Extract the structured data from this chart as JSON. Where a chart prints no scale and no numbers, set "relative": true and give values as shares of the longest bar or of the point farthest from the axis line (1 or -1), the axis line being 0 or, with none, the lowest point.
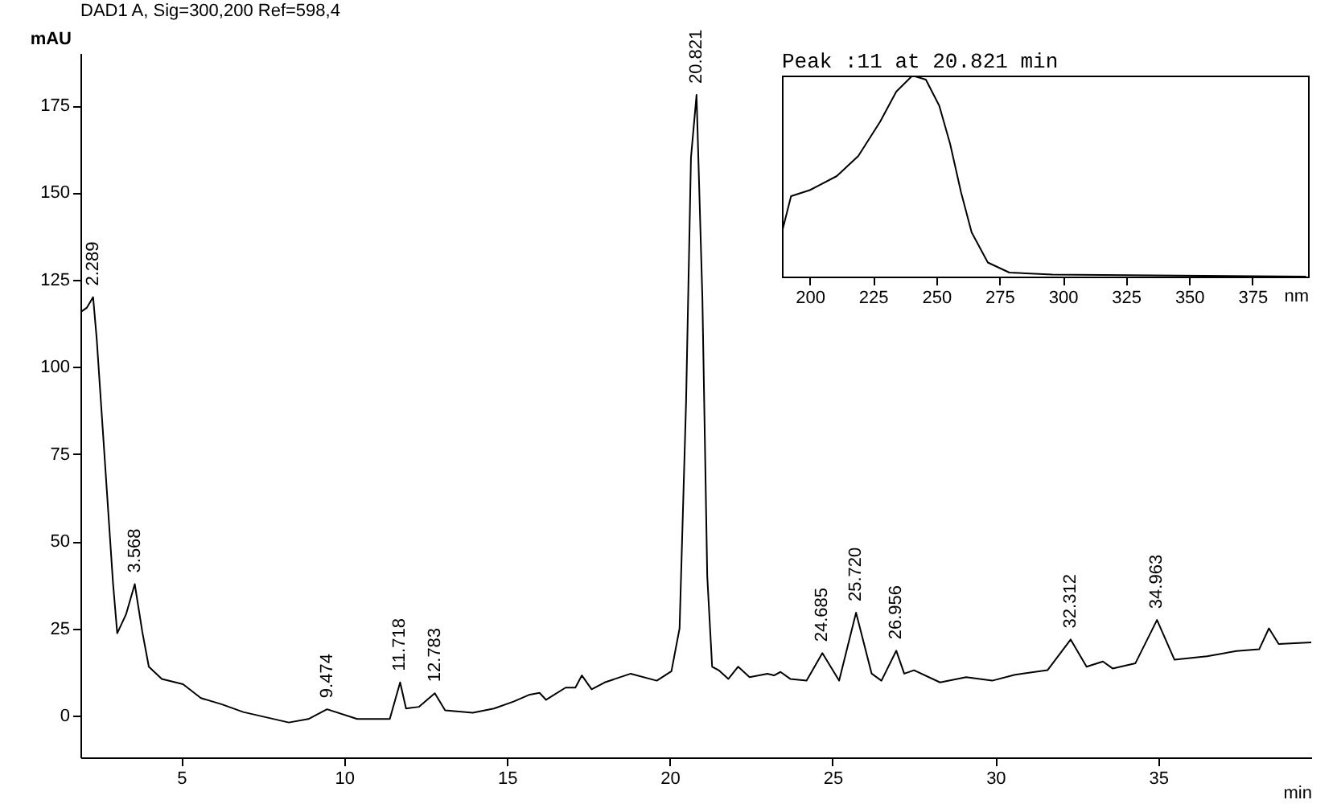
{
  "chart_data": [
    {
      "type": "line",
      "title": "DAD1 A, Sig=300,200 Ref=598,4",
      "xlabel": "min",
      "ylabel": "mAU",
      "xlim": [
        1.9,
        39.7
      ],
      "xticks": [
        5,
        10,
        15,
        20,
        25,
        30,
        35
      ],
      "ylim": [
        -12,
        190
      ],
      "yticks": [
        0,
        25,
        50,
        75,
        100,
        125,
        150,
        175
      ],
      "series": [
        {
          "color": "#000000",
          "x": [
            1.95,
            2.1,
            2.289,
            2.4,
            2.6,
            2.9,
            3.03,
            3.3,
            3.568,
            3.8,
            4.0,
            4.4,
            5.05,
            5.6,
            6.25,
            6.9,
            7.6,
            8.3,
            8.9,
            9.474,
            10.4,
            11.4,
            11.718,
            11.9,
            12.3,
            12.783,
            13.1,
            13.95,
            14.6,
            15.2,
            15.7,
            16.0,
            16.2,
            16.8,
            17.1,
            17.3,
            17.6,
            18.0,
            18.8,
            19.6,
            20.05,
            20.3,
            20.5,
            20.65,
            20.821,
            21.0,
            21.15,
            21.3,
            21.5,
            21.8,
            22.1,
            22.45,
            23.0,
            23.2,
            23.4,
            23.7,
            24.2,
            24.685,
            25.2,
            25.72,
            26.2,
            26.5,
            26.956,
            27.2,
            27.5,
            28.3,
            29.1,
            29.9,
            30.6,
            31.6,
            32.312,
            32.8,
            33.3,
            33.6,
            34.3,
            34.963,
            35.5,
            36.5,
            37.4,
            38.1,
            38.4,
            38.7,
            39.7
          ],
          "values": [
            116,
            117,
            120,
            108,
            80,
            38,
            23.6,
            29,
            37.7,
            24,
            14,
            10.5,
            9,
            5,
            3.2,
            1,
            -0.5,
            -2,
            -1,
            1.8,
            -1,
            -1,
            9.5,
            2,
            2.5,
            6.4,
            1.5,
            0.8,
            2,
            4,
            6,
            6.5,
            4.5,
            8,
            8,
            11.5,
            7.5,
            9.5,
            12,
            10,
            12.7,
            25,
            90,
            160,
            178,
            120,
            40,
            14,
            13,
            10.5,
            14,
            11,
            12,
            11.5,
            12.5,
            10.5,
            10,
            17.9,
            10,
            29.5,
            12,
            10,
            18.6,
            12,
            13,
            9.5,
            11,
            10,
            11.7,
            13,
            21.8,
            14,
            15.5,
            13.5,
            15,
            27.4,
            16,
            17,
            18.5,
            19,
            25,
            20.5,
            21
          ]
        }
      ],
      "annotations": [
        {
          "text": "2.289",
          "x": 2.289,
          "y": 120
        },
        {
          "text": "3.568",
          "x": 3.568,
          "y": 37.7
        },
        {
          "text": "9.474",
          "x": 9.474,
          "y": 1.8
        },
        {
          "text": "11.718",
          "x": 11.718,
          "y": 9.5
        },
        {
          "text": "12.783",
          "x": 12.783,
          "y": 6.4
        },
        {
          "text": "20.821",
          "x": 20.821,
          "y": 178
        },
        {
          "text": "24.685",
          "x": 24.685,
          "y": 17.9
        },
        {
          "text": "25.720",
          "x": 25.72,
          "y": 29.5
        },
        {
          "text": "26.956",
          "x": 26.956,
          "y": 18.6
        },
        {
          "text": "32.312",
          "x": 32.312,
          "y": 21.8
        },
        {
          "text": "34.963",
          "x": 34.963,
          "y": 27.4
        }
      ]
    },
    {
      "type": "line",
      "title": "Peak :11 at 20.821 min",
      "xlabel": "nm",
      "relative": true,
      "xlim": [
        189,
        397
      ],
      "xticks": [
        200,
        225,
        250,
        275,
        300,
        325,
        350,
        375
      ],
      "series": [
        {
          "color": "#000000",
          "x": [
            189,
            192.6,
            200,
            210.7,
            219.2,
            227.8,
            234.2,
            240.6,
            245.9,
            251.2,
            255.5,
            259.8,
            264,
            270.4,
            278.9,
            296,
            396
          ],
          "values": [
            0.22,
            0.4,
            0.43,
            0.5,
            0.6,
            0.77,
            0.92,
            1.0,
            0.98,
            0.85,
            0.66,
            0.42,
            0.22,
            0.07,
            0.02,
            0.01,
            0
          ]
        }
      ]
    }
  ]
}
